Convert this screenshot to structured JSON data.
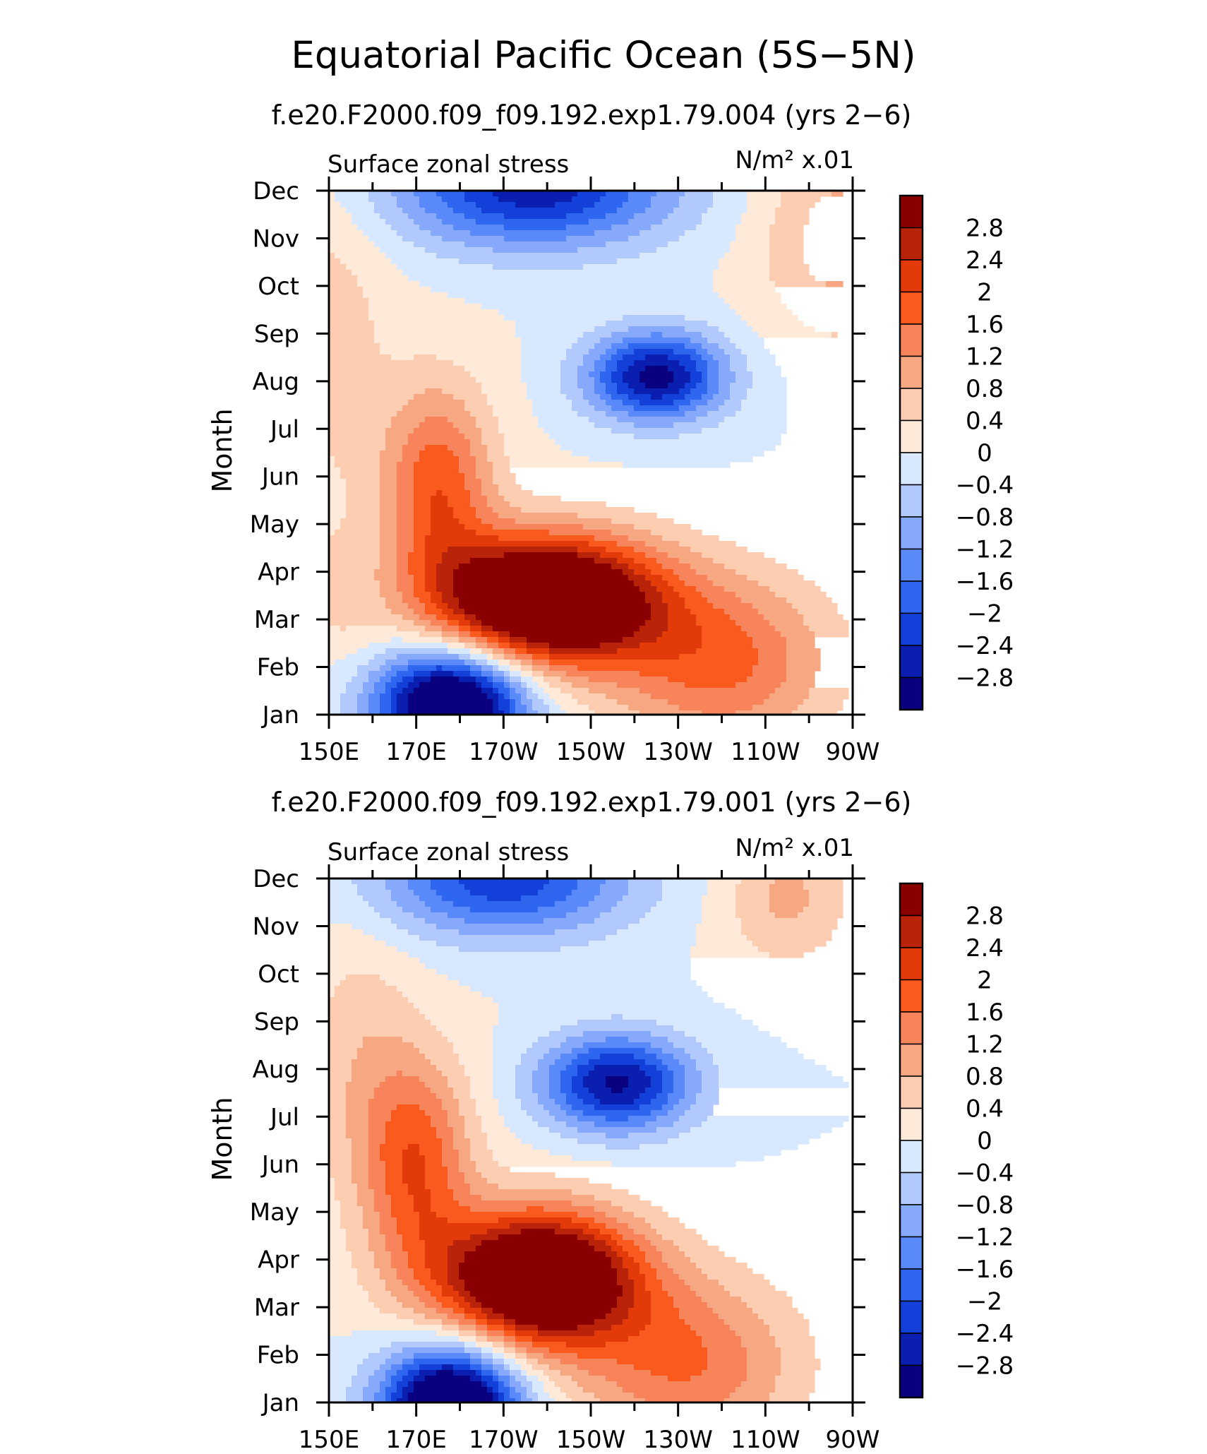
{
  "figure": {
    "title": "Equatorial Pacific Ocean (5S−5N)"
  },
  "palette": {
    "colors": [
      "#08007f",
      "#0a1fb0",
      "#1240d9",
      "#2e66f0",
      "#5a8afa",
      "#86a9fb",
      "#b2c9fd",
      "#d8e8fe",
      "#ffe9d8",
      "#fdcdb2",
      "#f7a883",
      "#f7845a",
      "#fa5a1e",
      "#e23a08",
      "#b9230a",
      "#8a0000"
    ],
    "levels": [
      -2.8,
      -2.4,
      -2,
      -1.6,
      -1.2,
      -0.8,
      -0.4,
      0,
      0.4,
      0.8,
      1.2,
      1.6,
      2,
      2.4,
      2.8
    ]
  },
  "chart_data": [
    {
      "type": "heatmap",
      "title": "f.e20.F2000.f09_f09.192.exp1.79.004 (yrs 2−6)",
      "left_label": "Surface zonal stress",
      "right_label": "N/m² x.01",
      "xlabel": "",
      "ylabel": "Month",
      "x_ticks": [
        "150E",
        "170E",
        "170W",
        "150W",
        "130W",
        "110W",
        "90W"
      ],
      "x_range_deg_east": [
        150,
        270
      ],
      "y_ticks": [
        "Jan",
        "Feb",
        "Mar",
        "Apr",
        "May",
        "Jun",
        "Jul",
        "Aug",
        "Sep",
        "Oct",
        "Nov",
        "Dec"
      ],
      "colorbar_labels": [
        "2.8",
        "2.4",
        "2",
        "1.6",
        "1.2",
        "0.8",
        "0.4",
        "0",
        "−0.4",
        "−0.8",
        "−1.2",
        "−1.6",
        "−2",
        "−2.4",
        "−2.8"
      ],
      "features": [
        {
          "lon": 225,
          "month": 7.1,
          "amp": -3.0,
          "slon": 11,
          "smon": 0.65
        },
        {
          "lon": 200,
          "month": 2.4,
          "amp": 4.8,
          "slon": 18,
          "smon": 0.95
        },
        {
          "lon": 175,
          "month": 4.8,
          "amp": 1.9,
          "slon": 9,
          "smon": 1.5
        },
        {
          "lon": 178,
          "month": 0.2,
          "amp": -4.2,
          "slon": 12,
          "smon": 0.85
        },
        {
          "lon": 197,
          "month": 11.1,
          "amp": -2.7,
          "slon": 22,
          "smon": 0.9
        },
        {
          "lon": 240,
          "month": 1.1,
          "amp": 1.7,
          "slon": 18,
          "smon": 1.3
        },
        {
          "lon": 266,
          "month": 10.0,
          "amp": 1.0,
          "slon": 12,
          "smon": 1.5
        },
        {
          "lon": 150,
          "month": 8.0,
          "amp": 0.6,
          "slon": 10,
          "smon": 2.5
        },
        {
          "lon": 152,
          "month": 2.5,
          "amp": 0.4,
          "slon": 6,
          "smon": 1.0
        }
      ]
    },
    {
      "type": "heatmap",
      "title": "f.e20.F2000.f09_f09.192.exp1.79.001 (yrs 2−6)",
      "left_label": "Surface zonal stress",
      "right_label": "N/m² x.01",
      "xlabel": "",
      "ylabel": "Month",
      "x_ticks": [
        "150E",
        "170E",
        "170W",
        "150W",
        "130W",
        "110W",
        "90W"
      ],
      "x_range_deg_east": [
        150,
        270
      ],
      "y_ticks": [
        "Jan",
        "Feb",
        "Mar",
        "Apr",
        "May",
        "Jun",
        "Jul",
        "Aug",
        "Sep",
        "Oct",
        "Nov",
        "Dec"
      ],
      "colorbar_labels": [
        "2.8",
        "2.4",
        "2",
        "1.6",
        "1.2",
        "0.8",
        "0.4",
        "0",
        "−0.4",
        "−0.8",
        "−1.2",
        "−1.6",
        "−2",
        "−2.4",
        "−2.8"
      ],
      "features": [
        {
          "lon": 216,
          "month": 6.7,
          "amp": -2.9,
          "slon": 12,
          "smon": 0.7
        },
        {
          "lon": 198,
          "month": 2.6,
          "amp": 4.6,
          "slon": 16,
          "smon": 1.0
        },
        {
          "lon": 170,
          "month": 5.0,
          "amp": 1.9,
          "slon": 9,
          "smon": 1.6
        },
        {
          "lon": 178,
          "month": -0.1,
          "amp": -4.4,
          "slon": 11,
          "smon": 0.9
        },
        {
          "lon": 190,
          "month": 11.0,
          "amp": -2.3,
          "slon": 20,
          "smon": 0.85
        },
        {
          "lon": 232,
          "month": 0.8,
          "amp": 1.6,
          "slon": 18,
          "smon": 1.3
        },
        {
          "lon": 255,
          "month": 10.6,
          "amp": 0.9,
          "slon": 10,
          "smon": 1.0
        },
        {
          "lon": 157,
          "month": 7.3,
          "amp": 0.6,
          "slon": 9,
          "smon": 2.0
        }
      ]
    }
  ]
}
